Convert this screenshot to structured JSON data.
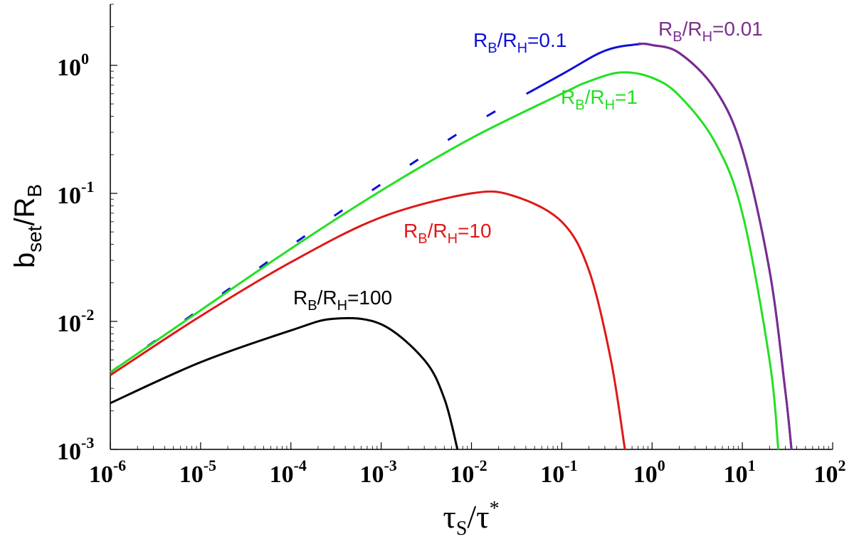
{
  "chart_data": {
    "type": "line",
    "title": "",
    "xlabel": {
      "main": "τ",
      "sub": "S",
      "post": "/τ",
      "sup": "*"
    },
    "ylabel": {
      "main": "b",
      "sub": "set",
      "post": "/R",
      "sub2": "B"
    },
    "xscale": "log",
    "yscale": "log",
    "xlim": [
      1e-06,
      100
    ],
    "ylim": [
      0.001,
      3
    ],
    "grid": false,
    "x_ticks": [
      {
        "base": "10",
        "exp": "-6"
      },
      {
        "base": "10",
        "exp": "-5"
      },
      {
        "base": "10",
        "exp": "-4"
      },
      {
        "base": "10",
        "exp": "-3"
      },
      {
        "base": "10",
        "exp": "-2"
      },
      {
        "base": "10",
        "exp": "-1"
      },
      {
        "base": "10",
        "exp": "0"
      },
      {
        "base": "10",
        "exp": "1"
      },
      {
        "base": "10",
        "exp": "2"
      }
    ],
    "y_ticks": [
      {
        "base": "10",
        "exp": "-3"
      },
      {
        "base": "10",
        "exp": "-2"
      },
      {
        "base": "10",
        "exp": "-1"
      },
      {
        "base": "10",
        "exp": "0"
      }
    ],
    "series": [
      {
        "label": {
          "a": "R",
          "as": "B",
          "b": "/R",
          "bs": "H",
          "c": "=0.01"
        },
        "color": "#7b2d8e",
        "x": [
          0.7,
          1,
          2,
          5,
          10,
          20,
          30,
          35
        ],
        "y": [
          1.48,
          1.44,
          1.25,
          0.65,
          0.22,
          0.025,
          0.0028,
          0.001
        ]
      },
      {
        "label": {
          "a": "R",
          "as": "B",
          "b": "/R",
          "bs": "H",
          "c": "=0.1"
        },
        "color": "#1010d8",
        "dashed_segment_until": 0.05,
        "x": [
          1e-06,
          1e-05,
          0.0001,
          0.001,
          0.01,
          0.1,
          0.3,
          0.7,
          1,
          2,
          5,
          10,
          20,
          30,
          35
        ],
        "y": [
          0.004,
          0.0125,
          0.039,
          0.118,
          0.34,
          0.85,
          1.3,
          1.46,
          1.44,
          1.25,
          0.65,
          0.22,
          0.025,
          0.0028,
          0.001
        ]
      },
      {
        "label": {
          "a": "R",
          "as": "B",
          "b": "/R",
          "bs": "H",
          "c": "=1"
        },
        "color": "#22e022",
        "x": [
          1e-06,
          1e-05,
          0.0001,
          0.001,
          0.01,
          0.1,
          0.2,
          0.45,
          1,
          2,
          5,
          10,
          20,
          25
        ],
        "y": [
          0.004,
          0.0122,
          0.037,
          0.105,
          0.27,
          0.6,
          0.75,
          0.88,
          0.8,
          0.58,
          0.25,
          0.07,
          0.005,
          0.001
        ]
      },
      {
        "label": {
          "a": "R",
          "as": "B",
          "b": "/R",
          "bs": "H",
          "c": "=10"
        },
        "color": "#e01818",
        "x": [
          1e-06,
          1e-05,
          0.0001,
          0.001,
          0.01,
          0.03,
          0.1,
          0.2,
          0.35,
          0.5
        ],
        "y": [
          0.0038,
          0.011,
          0.029,
          0.065,
          0.1,
          0.095,
          0.06,
          0.025,
          0.005,
          0.001
        ]
      },
      {
        "label": {
          "a": "R",
          "as": "B",
          "b": "/R",
          "bs": "H",
          "c": "=100"
        },
        "color": "#000000",
        "x": [
          1e-06,
          1e-05,
          0.0001,
          0.0003,
          0.001,
          0.003,
          0.005,
          0.007
        ],
        "y": [
          0.0023,
          0.0048,
          0.0085,
          0.0105,
          0.0095,
          0.005,
          0.0025,
          0.001
        ]
      }
    ]
  }
}
